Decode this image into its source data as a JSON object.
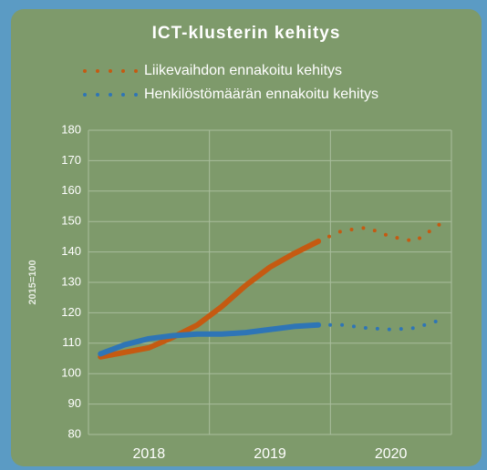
{
  "chart_data": {
    "type": "line",
    "title": "ICT-klusterin kehitys",
    "y_label": "2015=100",
    "categories": [
      null,
      null,
      "2018",
      null,
      null,
      null,
      null,
      "2019",
      null,
      null,
      null,
      null,
      "2020",
      null,
      null
    ],
    "series": [
      {
        "color": "#c55a11",
        "style": "solid",
        "values": [
          105.5,
          107,
          108.5,
          112,
          116,
          122,
          129,
          135,
          139.5,
          143.5,
          null,
          null,
          null,
          null,
          null
        ]
      },
      {
        "color": "#2e75b6",
        "style": "solid",
        "values": [
          106.5,
          109.5,
          111.5,
          112.5,
          113,
          113,
          113.5,
          114.5,
          115.5,
          116,
          null,
          null,
          null,
          null,
          null
        ]
      },
      {
        "name": "Liikevaihdon ennakoitu kehitys",
        "color": "#c55a11",
        "style": "dotted",
        "values": [
          null,
          null,
          null,
          null,
          null,
          null,
          null,
          null,
          null,
          143.5,
          147,
          148,
          145,
          143.5,
          149
        ]
      },
      {
        "name": "Henkilöstömäärän ennakoitu kehitys",
        "color": "#2e75b6",
        "style": "dotted",
        "values": [
          null,
          null,
          null,
          null,
          null,
          null,
          null,
          null,
          null,
          116,
          116,
          115,
          114.5,
          115,
          117.5
        ]
      }
    ],
    "ylim": [
      80,
      180
    ],
    "yticks": [
      80,
      90,
      100,
      110,
      120,
      130,
      140,
      150,
      160,
      170,
      180
    ],
    "grid": true
  }
}
